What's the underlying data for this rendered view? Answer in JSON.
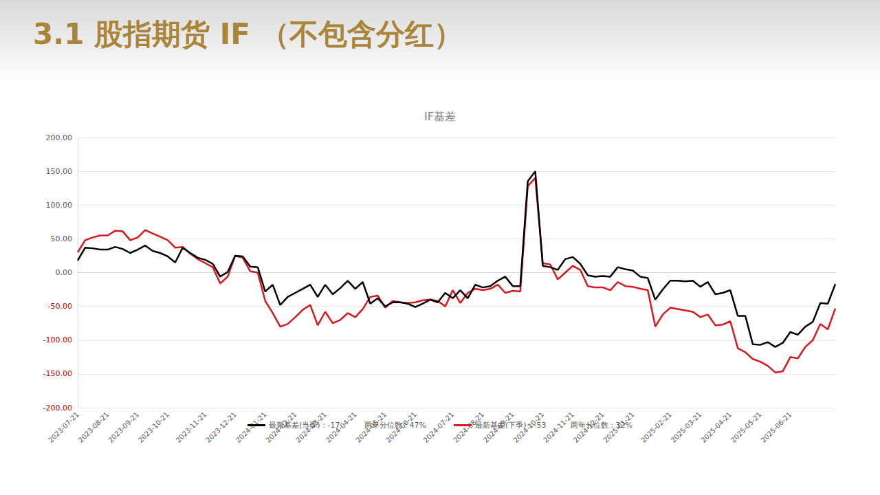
{
  "header": {
    "title": "3.1 股指期货 IF （不包含分红）"
  },
  "chart_data": {
    "type": "line",
    "title": "IF基差",
    "x": [
      "2023-07-21",
      null,
      null,
      null,
      "2023-08-21",
      null,
      null,
      null,
      "2023-09-21",
      null,
      null,
      null,
      "2023-10-21",
      null,
      null,
      null,
      null,
      "2023-11-21",
      null,
      null,
      null,
      "2023-12-21",
      null,
      null,
      null,
      "2024-01-21",
      null,
      null,
      null,
      "2024-02-21",
      null,
      null,
      null,
      "2024-03-21",
      null,
      null,
      null,
      "2024-04-21",
      null,
      null,
      null,
      "2024-05-21",
      null,
      null,
      null,
      "2024-06-21",
      null,
      null,
      null,
      null,
      "2024-07-21",
      null,
      null,
      null,
      "2024-08-21",
      null,
      null,
      null,
      "2024-09-21",
      null,
      null,
      null,
      "2024-10-21",
      null,
      null,
      null,
      "2024-11-21",
      null,
      null,
      null,
      "2024-12-21",
      null,
      null,
      null,
      "2025-01-21",
      null,
      null,
      null,
      null,
      "2025-02-21",
      null,
      null,
      null,
      "2025-03-21",
      null,
      null,
      null,
      "2025-04-21",
      null,
      null,
      null,
      "2025-05-21",
      null,
      null,
      null,
      "2025-06-21",
      null,
      null,
      null,
      null,
      null,
      null
    ],
    "series": [
      {
        "name": "最新基差(当季)：-17",
        "annotation": "两年分位数：47%",
        "color": "#000000",
        "values": [
          18,
          37,
          36,
          34,
          34,
          38,
          35,
          29,
          34,
          40,
          32,
          29,
          24,
          15,
          37,
          29,
          22,
          19,
          13,
          -6,
          1,
          25,
          24,
          9,
          8,
          -28,
          -18,
          -48,
          -36,
          -30,
          -24,
          -18,
          -36,
          -18,
          -32,
          -23,
          -12,
          -24,
          -14,
          -46,
          -38,
          -50,
          -44,
          -44,
          -46,
          -51,
          -46,
          -40,
          -44,
          -30,
          -38,
          -26,
          -38,
          -18,
          -22,
          -20,
          -12,
          -6,
          -20,
          -20,
          135,
          150,
          10,
          8,
          4,
          20,
          23,
          13,
          -4,
          -6,
          -5,
          -6,
          8,
          5,
          3,
          -6,
          -8,
          -40,
          -25,
          -12,
          -12,
          -13,
          -12,
          -21,
          -14,
          -32,
          -30,
          -26,
          -64,
          -64,
          -106,
          -107,
          -103,
          -110,
          -104,
          -88,
          -92,
          -80,
          -73,
          -45,
          -46,
          -17
        ]
      },
      {
        "name": "最新基差(下季)：-53",
        "annotation": "两年分位数：32%",
        "color": "#d7191f",
        "values": [
          30,
          48,
          52,
          55,
          55,
          62,
          61,
          48,
          52,
          63,
          58,
          53,
          48,
          37,
          38,
          28,
          20,
          14,
          8,
          -16,
          -6,
          25,
          22,
          2,
          0,
          -42,
          -60,
          -80,
          -76,
          -66,
          -55,
          -48,
          -78,
          -58,
          -75,
          -70,
          -60,
          -66,
          -54,
          -36,
          -34,
          -52,
          -42,
          -44,
          -45,
          -44,
          -41,
          -40,
          -42,
          -50,
          -26,
          -45,
          -30,
          -24,
          -26,
          -24,
          -18,
          -30,
          -27,
          -28,
          128,
          140,
          14,
          12,
          -10,
          0,
          10,
          4,
          -20,
          -22,
          -22,
          -26,
          -14,
          -20,
          -21,
          -24,
          -26,
          -80,
          -62,
          -52,
          -54,
          -56,
          -58,
          -66,
          -62,
          -78,
          -77,
          -72,
          -112,
          -118,
          -128,
          -132,
          -138,
          -148,
          -146,
          -125,
          -127,
          -110,
          -100,
          -76,
          -84,
          -53
        ]
      }
    ],
    "ylim": [
      -200,
      200
    ],
    "yticks": [
      {
        "value": -200,
        "label": "-200.00"
      },
      {
        "value": -150,
        "label": "-150.00"
      },
      {
        "value": -100,
        "label": "-100.00"
      },
      {
        "value": -50,
        "label": "-50.00"
      },
      {
        "value": 0,
        "label": "0.00"
      },
      {
        "value": 50,
        "label": "50.00"
      },
      {
        "value": 100,
        "label": "100.00"
      },
      {
        "value": 150,
        "label": "150.00"
      },
      {
        "value": 200,
        "label": "200.00"
      }
    ],
    "grid": true,
    "legend": "bottom"
  }
}
